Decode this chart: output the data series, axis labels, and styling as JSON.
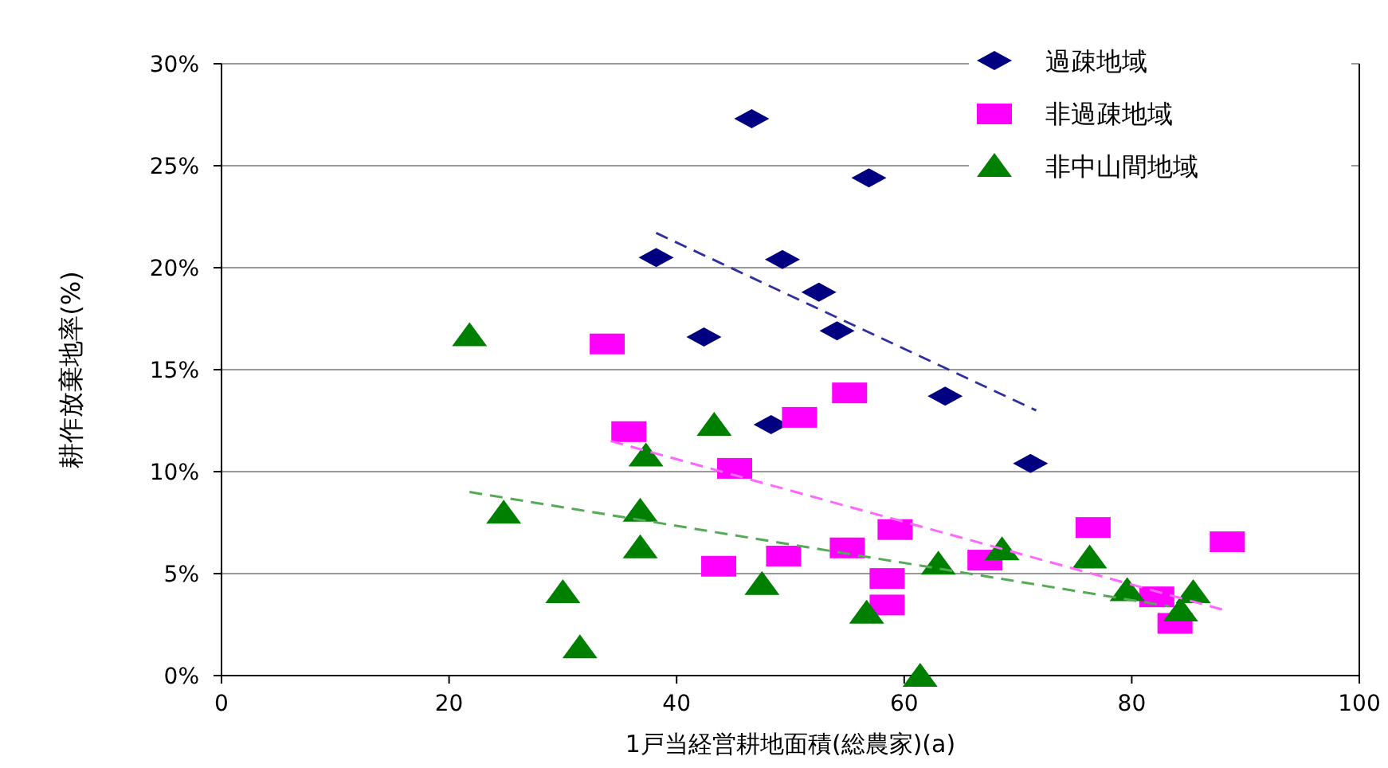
{
  "chart_data": {
    "type": "scatter",
    "xlabel": "1戸当経営耕地面積(総農家)(a)",
    "ylabel": "耕作放棄地率(%)",
    "xlim": [
      0,
      100
    ],
    "xticks": [
      0,
      20,
      40,
      60,
      80,
      100
    ],
    "ylim": [
      0,
      30
    ],
    "yticks": [
      {
        "value": 0,
        "label": "0%"
      },
      {
        "value": 5,
        "label": "5%"
      },
      {
        "value": 10,
        "label": "10%"
      },
      {
        "value": 15,
        "label": "15%"
      },
      {
        "value": 20,
        "label": "20%"
      },
      {
        "value": 25,
        "label": "25%"
      },
      {
        "value": 30,
        "label": "30%"
      }
    ],
    "grid": "y",
    "legend": "top right",
    "series": [
      {
        "name": "過疎地域",
        "color": "#000080",
        "marker": "diamond",
        "x": [
          46.6,
          56.9,
          38.2,
          49.3,
          52.5,
          42.4,
          54.1,
          48.3,
          63.6,
          71.1
        ],
        "values": [
          27.3,
          24.4,
          20.5,
          20.4,
          18.8,
          16.6,
          16.9,
          12.3,
          13.7,
          10.4
        ]
      },
      {
        "name": "非過疎地域",
        "color": "#ff00ff",
        "marker": "square",
        "x": [
          33.9,
          35.8,
          45.1,
          50.8,
          55.2,
          59.2,
          43.7,
          49.4,
          55.0,
          58.5,
          58.5,
          67.1,
          76.6,
          82.2,
          83.8,
          88.4
        ],
        "values": [
          16.3,
          12.0,
          10.2,
          12.7,
          13.9,
          7.2,
          5.4,
          5.9,
          6.3,
          4.8,
          3.5,
          5.7,
          7.3,
          3.9,
          2.6,
          6.6
        ]
      },
      {
        "name": "非中山間地域",
        "color": "#008000",
        "marker": "triangle",
        "x": [
          21.8,
          24.8,
          30.0,
          31.5,
          37.3,
          36.8,
          36.8,
          43.3,
          47.5,
          56.7,
          63.0,
          61.4,
          68.6,
          76.3,
          79.6,
          85.4,
          84.3
        ],
        "values": [
          16.7,
          8.0,
          4.1,
          1.4,
          10.8,
          6.3,
          8.1,
          12.3,
          4.5,
          3.1,
          5.5,
          0.0,
          6.2,
          5.8,
          4.2,
          4.1,
          3.2
        ]
      },
      {
        "type": "line",
        "color": "#3030a0",
        "line_style": "dashed",
        "x": [
          38.2,
          71.6
        ],
        "values": [
          21.7,
          13.0
        ]
      },
      {
        "type": "line",
        "color": "#ff66ff",
        "line_style": "dashed",
        "x": [
          34.2,
          88.2
        ],
        "values": [
          11.5,
          3.2
        ]
      },
      {
        "type": "line",
        "color": "#55aa55",
        "line_style": "dashed",
        "x": [
          21.8,
          83.3
        ],
        "values": [
          9.0,
          3.4
        ]
      }
    ]
  }
}
